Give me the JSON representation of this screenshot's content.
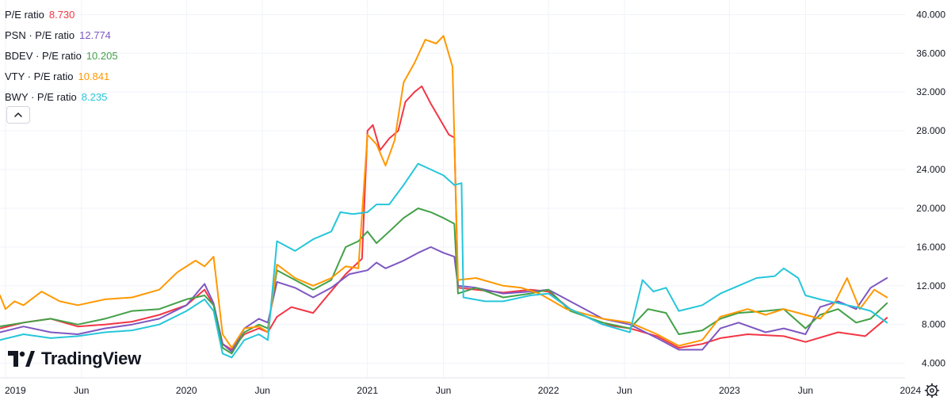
{
  "legend": [
    {
      "ticker": "",
      "label": "P/E ratio",
      "value": "8.730",
      "color": "#f23645"
    },
    {
      "ticker": "PSN",
      "label": "PSN · P/E ratio",
      "value": "12.774",
      "color": "#7e57c2"
    },
    {
      "ticker": "BDEV",
      "label": "BDEV · P/E ratio",
      "value": "10.205",
      "color": "#43a047"
    },
    {
      "ticker": "VTY",
      "label": "VTY · P/E ratio",
      "value": "10.841",
      "color": "#ff9800"
    },
    {
      "ticker": "BWY",
      "label": "BWY · P/E ratio",
      "value": "8.235",
      "color": "#26c6da"
    }
  ],
  "logo": {
    "text": "TradingView"
  },
  "chart_data": {
    "type": "line",
    "ylim": [
      2.5,
      41.5
    ],
    "xlim": [
      2018.97,
      2023.97
    ],
    "y_ticks": [
      "4.000",
      "8.000",
      "12.000",
      "16.000",
      "20.000",
      "24.000",
      "28.000",
      "32.000",
      "36.000",
      "40.000"
    ],
    "x_ticks": [
      {
        "label": "2019",
        "x": 2019.0
      },
      {
        "label": "Jun",
        "x": 2019.42
      },
      {
        "label": "2020",
        "x": 2020.0
      },
      {
        "label": "Jun",
        "x": 2020.42
      },
      {
        "label": "2021",
        "x": 2021.0
      },
      {
        "label": "Jun",
        "x": 2021.42
      },
      {
        "label": "2022",
        "x": 2022.0
      },
      {
        "label": "Jun",
        "x": 2022.42
      },
      {
        "label": "2023",
        "x": 2023.0
      },
      {
        "label": "Jun",
        "x": 2023.42
      },
      {
        "label": "2024",
        "x": 2024.0
      }
    ],
    "grid": true,
    "series": [
      {
        "name": "P/E ratio",
        "color": "#f23645",
        "points": [
          [
            2018.97,
            7.6
          ],
          [
            2019.1,
            8.2
          ],
          [
            2019.25,
            8.6
          ],
          [
            2019.4,
            7.8
          ],
          [
            2019.55,
            8.0
          ],
          [
            2019.7,
            8.3
          ],
          [
            2019.85,
            9.0
          ],
          [
            2020.0,
            10.0
          ],
          [
            2020.1,
            11.6
          ],
          [
            2020.15,
            10.0
          ],
          [
            2020.2,
            6.0
          ],
          [
            2020.25,
            5.4
          ],
          [
            2020.32,
            7.0
          ],
          [
            2020.4,
            7.6
          ],
          [
            2020.45,
            7.2
          ],
          [
            2020.5,
            8.8
          ],
          [
            2020.58,
            9.8
          ],
          [
            2020.7,
            9.2
          ],
          [
            2020.78,
            11.0
          ],
          [
            2020.88,
            13.2
          ],
          [
            2020.97,
            14.8
          ],
          [
            2021.0,
            28.0
          ],
          [
            2021.03,
            28.6
          ],
          [
            2021.07,
            26.0
          ],
          [
            2021.12,
            27.2
          ],
          [
            2021.17,
            28.0
          ],
          [
            2021.21,
            31.0
          ],
          [
            2021.26,
            32.0
          ],
          [
            2021.3,
            32.6
          ],
          [
            2021.35,
            30.8
          ],
          [
            2021.4,
            29.2
          ],
          [
            2021.45,
            27.6
          ],
          [
            2021.48,
            27.3
          ],
          [
            2021.5,
            11.8
          ],
          [
            2021.6,
            11.6
          ],
          [
            2021.75,
            11.3
          ],
          [
            2021.9,
            11.6
          ],
          [
            2022.0,
            11.4
          ],
          [
            2022.12,
            9.6
          ],
          [
            2022.3,
            8.0
          ],
          [
            2022.45,
            7.6
          ],
          [
            2022.6,
            6.8
          ],
          [
            2022.72,
            5.6
          ],
          [
            2022.85,
            6.0
          ],
          [
            2022.95,
            6.6
          ],
          [
            2023.1,
            7.0
          ],
          [
            2023.3,
            6.8
          ],
          [
            2023.42,
            6.2
          ],
          [
            2023.6,
            7.2
          ],
          [
            2023.75,
            6.8
          ],
          [
            2023.87,
            8.7
          ]
        ]
      },
      {
        "name": "PSN · P/E ratio",
        "color": "#7e57c2",
        "points": [
          [
            2018.97,
            7.2
          ],
          [
            2019.1,
            7.8
          ],
          [
            2019.25,
            7.2
          ],
          [
            2019.4,
            7.0
          ],
          [
            2019.55,
            7.6
          ],
          [
            2019.7,
            8.0
          ],
          [
            2019.85,
            8.6
          ],
          [
            2020.0,
            10.0
          ],
          [
            2020.1,
            12.2
          ],
          [
            2020.15,
            10.2
          ],
          [
            2020.2,
            6.0
          ],
          [
            2020.25,
            5.2
          ],
          [
            2020.32,
            7.6
          ],
          [
            2020.4,
            8.6
          ],
          [
            2020.45,
            8.2
          ],
          [
            2020.5,
            12.4
          ],
          [
            2020.6,
            11.8
          ],
          [
            2020.7,
            10.8
          ],
          [
            2020.8,
            11.8
          ],
          [
            2020.9,
            13.2
          ],
          [
            2021.0,
            13.6
          ],
          [
            2021.05,
            14.4
          ],
          [
            2021.1,
            13.8
          ],
          [
            2021.2,
            14.6
          ],
          [
            2021.28,
            15.4
          ],
          [
            2021.35,
            16.0
          ],
          [
            2021.42,
            15.4
          ],
          [
            2021.48,
            15.0
          ],
          [
            2021.5,
            12.0
          ],
          [
            2021.6,
            11.8
          ],
          [
            2021.75,
            11.2
          ],
          [
            2021.9,
            11.4
          ],
          [
            2022.0,
            11.6
          ],
          [
            2022.12,
            10.4
          ],
          [
            2022.3,
            8.6
          ],
          [
            2022.45,
            8.0
          ],
          [
            2022.6,
            6.6
          ],
          [
            2022.72,
            5.4
          ],
          [
            2022.85,
            5.4
          ],
          [
            2022.95,
            7.6
          ],
          [
            2023.05,
            8.2
          ],
          [
            2023.2,
            7.2
          ],
          [
            2023.3,
            7.6
          ],
          [
            2023.42,
            7.0
          ],
          [
            2023.5,
            9.8
          ],
          [
            2023.6,
            10.4
          ],
          [
            2023.7,
            9.6
          ],
          [
            2023.78,
            11.8
          ],
          [
            2023.87,
            12.8
          ]
        ]
      },
      {
        "name": "BDEV · P/E ratio",
        "color": "#43a047",
        "points": [
          [
            2018.97,
            7.8
          ],
          [
            2019.1,
            8.2
          ],
          [
            2019.25,
            8.6
          ],
          [
            2019.4,
            8.0
          ],
          [
            2019.55,
            8.6
          ],
          [
            2019.7,
            9.4
          ],
          [
            2019.85,
            9.6
          ],
          [
            2020.0,
            10.6
          ],
          [
            2020.1,
            11.0
          ],
          [
            2020.15,
            10.0
          ],
          [
            2020.2,
            5.6
          ],
          [
            2020.25,
            5.0
          ],
          [
            2020.32,
            7.2
          ],
          [
            2020.4,
            8.0
          ],
          [
            2020.45,
            7.6
          ],
          [
            2020.5,
            13.6
          ],
          [
            2020.6,
            12.6
          ],
          [
            2020.7,
            11.6
          ],
          [
            2020.8,
            12.6
          ],
          [
            2020.88,
            16.0
          ],
          [
            2020.95,
            16.6
          ],
          [
            2021.0,
            17.6
          ],
          [
            2021.05,
            16.4
          ],
          [
            2021.12,
            17.6
          ],
          [
            2021.2,
            19.0
          ],
          [
            2021.28,
            20.0
          ],
          [
            2021.35,
            19.6
          ],
          [
            2021.42,
            19.0
          ],
          [
            2021.48,
            18.4
          ],
          [
            2021.5,
            11.2
          ],
          [
            2021.6,
            11.8
          ],
          [
            2021.75,
            10.8
          ],
          [
            2021.9,
            11.2
          ],
          [
            2022.0,
            11.6
          ],
          [
            2022.12,
            9.4
          ],
          [
            2022.3,
            8.2
          ],
          [
            2022.45,
            7.6
          ],
          [
            2022.55,
            9.6
          ],
          [
            2022.65,
            9.2
          ],
          [
            2022.72,
            7.0
          ],
          [
            2022.85,
            7.4
          ],
          [
            2022.95,
            8.6
          ],
          [
            2023.05,
            9.2
          ],
          [
            2023.2,
            9.4
          ],
          [
            2023.3,
            9.6
          ],
          [
            2023.42,
            7.6
          ],
          [
            2023.5,
            9.0
          ],
          [
            2023.6,
            9.6
          ],
          [
            2023.7,
            8.2
          ],
          [
            2023.78,
            8.6
          ],
          [
            2023.87,
            10.2
          ]
        ]
      },
      {
        "name": "VTY · P/E ratio",
        "color": "#ff9800",
        "points": [
          [
            2018.97,
            11.0
          ],
          [
            2019.0,
            9.6
          ],
          [
            2019.05,
            10.4
          ],
          [
            2019.1,
            10.0
          ],
          [
            2019.2,
            11.4
          ],
          [
            2019.3,
            10.4
          ],
          [
            2019.4,
            10.0
          ],
          [
            2019.55,
            10.6
          ],
          [
            2019.7,
            10.8
          ],
          [
            2019.85,
            11.6
          ],
          [
            2019.95,
            13.4
          ],
          [
            2020.05,
            14.6
          ],
          [
            2020.1,
            14.0
          ],
          [
            2020.15,
            15.0
          ],
          [
            2020.2,
            7.0
          ],
          [
            2020.25,
            5.6
          ],
          [
            2020.32,
            7.6
          ],
          [
            2020.4,
            7.8
          ],
          [
            2020.45,
            7.2
          ],
          [
            2020.5,
            14.2
          ],
          [
            2020.6,
            12.8
          ],
          [
            2020.7,
            12.0
          ],
          [
            2020.8,
            12.8
          ],
          [
            2020.88,
            14.0
          ],
          [
            2020.95,
            13.8
          ],
          [
            2021.0,
            27.6
          ],
          [
            2021.05,
            26.6
          ],
          [
            2021.1,
            24.4
          ],
          [
            2021.15,
            27.0
          ],
          [
            2021.2,
            33.0
          ],
          [
            2021.26,
            35.0
          ],
          [
            2021.32,
            37.4
          ],
          [
            2021.38,
            37.0
          ],
          [
            2021.42,
            37.8
          ],
          [
            2021.47,
            34.6
          ],
          [
            2021.5,
            12.6
          ],
          [
            2021.6,
            12.8
          ],
          [
            2021.75,
            12.0
          ],
          [
            2021.85,
            11.8
          ],
          [
            2021.95,
            11.2
          ],
          [
            2022.1,
            9.6
          ],
          [
            2022.3,
            8.6
          ],
          [
            2022.45,
            8.2
          ],
          [
            2022.6,
            7.0
          ],
          [
            2022.72,
            5.8
          ],
          [
            2022.85,
            6.4
          ],
          [
            2022.95,
            8.8
          ],
          [
            2023.1,
            9.6
          ],
          [
            2023.2,
            9.0
          ],
          [
            2023.3,
            9.6
          ],
          [
            2023.42,
            9.0
          ],
          [
            2023.5,
            8.6
          ],
          [
            2023.58,
            10.2
          ],
          [
            2023.65,
            12.8
          ],
          [
            2023.72,
            9.6
          ],
          [
            2023.8,
            11.6
          ],
          [
            2023.87,
            10.8
          ]
        ]
      },
      {
        "name": "BWY · P/E ratio",
        "color": "#26c6da",
        "points": [
          [
            2018.97,
            6.4
          ],
          [
            2019.1,
            7.0
          ],
          [
            2019.25,
            6.6
          ],
          [
            2019.4,
            6.8
          ],
          [
            2019.55,
            7.2
          ],
          [
            2019.7,
            7.4
          ],
          [
            2019.85,
            8.0
          ],
          [
            2020.0,
            9.4
          ],
          [
            2020.1,
            10.6
          ],
          [
            2020.15,
            9.4
          ],
          [
            2020.2,
            5.0
          ],
          [
            2020.25,
            4.6
          ],
          [
            2020.32,
            6.4
          ],
          [
            2020.4,
            7.0
          ],
          [
            2020.45,
            6.4
          ],
          [
            2020.5,
            16.6
          ],
          [
            2020.6,
            15.6
          ],
          [
            2020.7,
            16.8
          ],
          [
            2020.8,
            17.6
          ],
          [
            2020.85,
            19.6
          ],
          [
            2020.92,
            19.4
          ],
          [
            2021.0,
            19.6
          ],
          [
            2021.05,
            20.4
          ],
          [
            2021.12,
            20.4
          ],
          [
            2021.2,
            22.4
          ],
          [
            2021.28,
            24.6
          ],
          [
            2021.35,
            24.0
          ],
          [
            2021.42,
            23.4
          ],
          [
            2021.48,
            22.4
          ],
          [
            2021.52,
            22.6
          ],
          [
            2021.53,
            10.8
          ],
          [
            2021.65,
            10.4
          ],
          [
            2021.75,
            10.4
          ],
          [
            2021.9,
            11.0
          ],
          [
            2022.0,
            11.2
          ],
          [
            2022.12,
            9.6
          ],
          [
            2022.3,
            8.0
          ],
          [
            2022.45,
            7.2
          ],
          [
            2022.52,
            12.6
          ],
          [
            2022.58,
            11.4
          ],
          [
            2022.65,
            11.8
          ],
          [
            2022.72,
            9.4
          ],
          [
            2022.85,
            10.0
          ],
          [
            2022.95,
            11.2
          ],
          [
            2023.05,
            12.0
          ],
          [
            2023.15,
            12.8
          ],
          [
            2023.25,
            13.0
          ],
          [
            2023.3,
            13.8
          ],
          [
            2023.38,
            12.8
          ],
          [
            2023.42,
            11.0
          ],
          [
            2023.5,
            10.6
          ],
          [
            2023.6,
            10.2
          ],
          [
            2023.7,
            9.8
          ],
          [
            2023.78,
            9.4
          ],
          [
            2023.87,
            8.2
          ]
        ]
      }
    ]
  }
}
